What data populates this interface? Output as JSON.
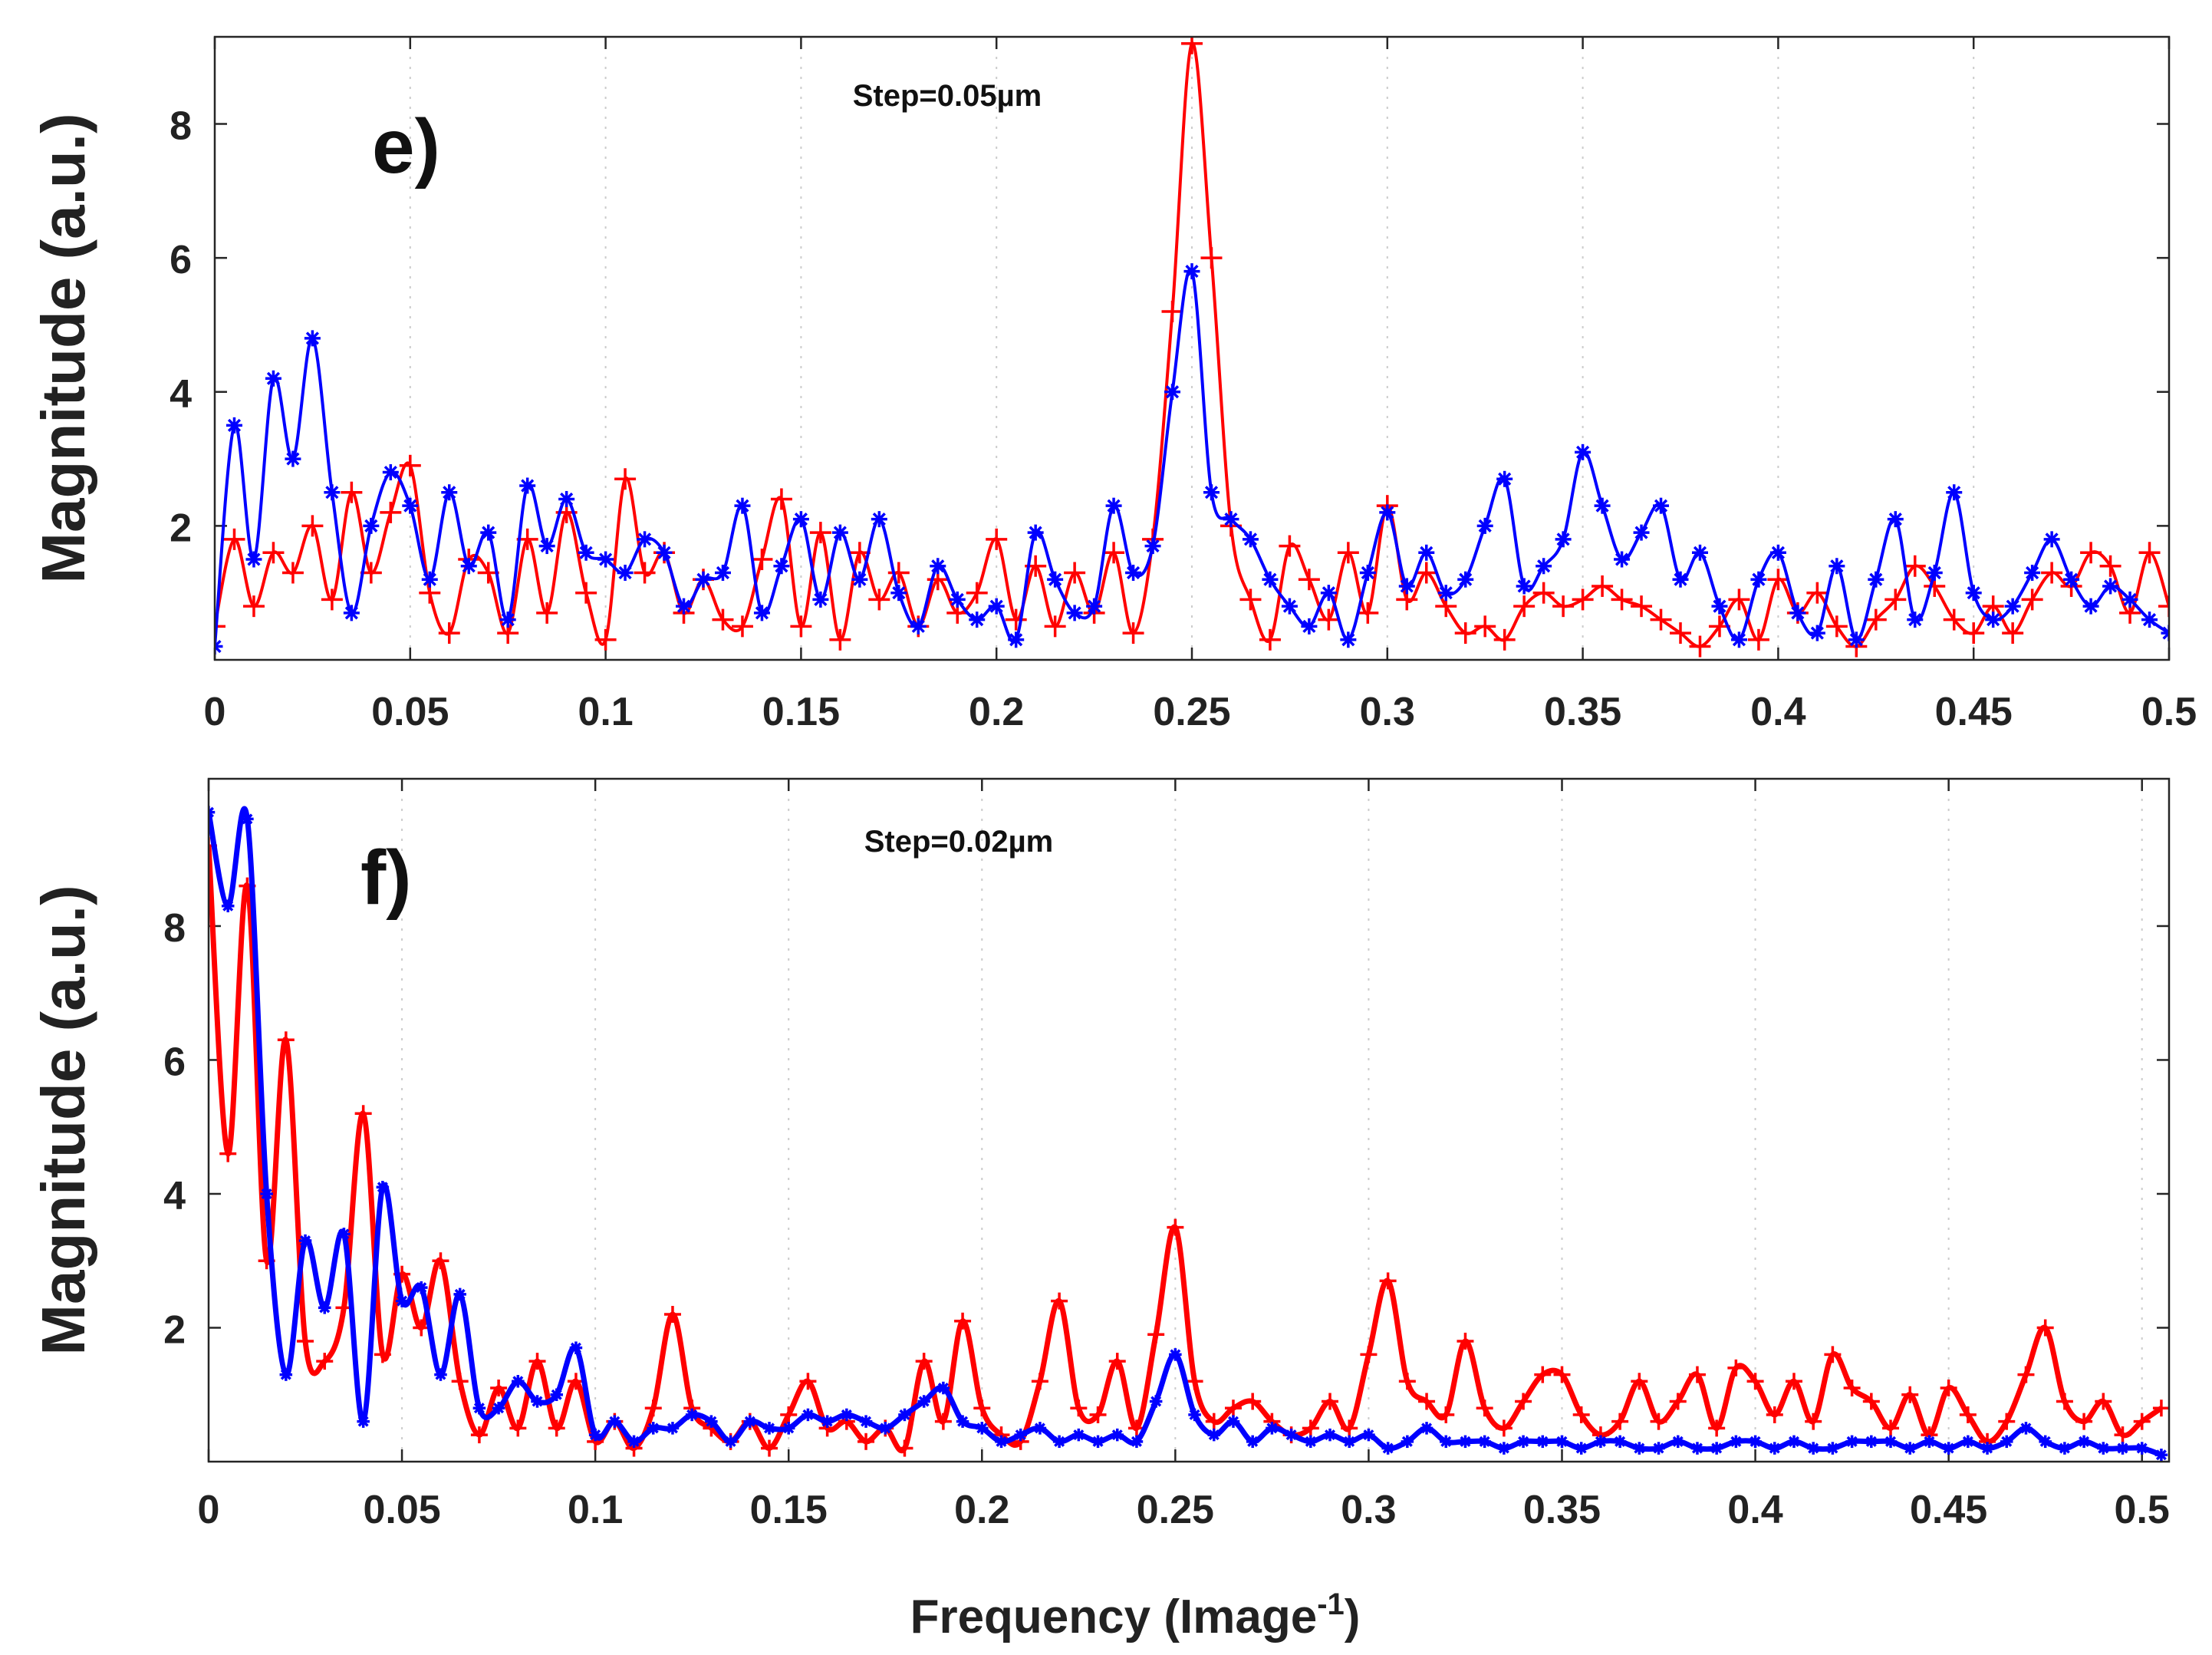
{
  "figure": {
    "x_axis_title": "Frequency (Image",
    "x_axis_title_sup": "-1",
    "x_axis_title_end": ")",
    "colors": {
      "red_series": "#ff0000",
      "blue_series": "#0000ff",
      "axis": "#262626"
    }
  },
  "chart_data": [
    {
      "type": "line",
      "panel": "e)",
      "annotation": "Step=0.05µm",
      "xlabel": "",
      "ylabel": "Magnitude (a.u.)",
      "xlim": [
        0,
        0.5
      ],
      "ylim": [
        0,
        9.3
      ],
      "xticks": [
        0,
        0.05,
        0.1,
        0.15,
        0.2,
        0.25,
        0.3,
        0.35,
        0.4,
        0.45,
        0.5
      ],
      "xtick_labels": [
        "0",
        "0.05",
        "0.1",
        "0.15",
        "0.2",
        "0.25",
        "0.3",
        "0.35",
        "0.4",
        "0.45",
        "0.5"
      ],
      "yticks": [
        2,
        4,
        6,
        8
      ],
      "ytick_labels": [
        "2",
        "4",
        "6",
        "8"
      ],
      "grid": "vertical-dotted",
      "series": [
        {
          "name": "red",
          "color": "#ff0000",
          "marker": "plus",
          "x": [
            0,
            0.005,
            0.01,
            0.015,
            0.02,
            0.025,
            0.03,
            0.035,
            0.04,
            0.045,
            0.05,
            0.055,
            0.06,
            0.065,
            0.07,
            0.075,
            0.08,
            0.085,
            0.09,
            0.095,
            0.1,
            0.105,
            0.11,
            0.115,
            0.12,
            0.125,
            0.13,
            0.135,
            0.14,
            0.145,
            0.15,
            0.155,
            0.16,
            0.165,
            0.17,
            0.175,
            0.18,
            0.185,
            0.19,
            0.195,
            0.2,
            0.205,
            0.21,
            0.215,
            0.22,
            0.225,
            0.23,
            0.235,
            0.24,
            0.245,
            0.25,
            0.255,
            0.26,
            0.265,
            0.27,
            0.275,
            0.28,
            0.285,
            0.29,
            0.295,
            0.3,
            0.305,
            0.31,
            0.315,
            0.32,
            0.325,
            0.33,
            0.335,
            0.34,
            0.345,
            0.35,
            0.355,
            0.36,
            0.365,
            0.37,
            0.375,
            0.38,
            0.385,
            0.39,
            0.395,
            0.4,
            0.405,
            0.41,
            0.415,
            0.42,
            0.425,
            0.43,
            0.435,
            0.44,
            0.445,
            0.45,
            0.455,
            0.46,
            0.465,
            0.47,
            0.475,
            0.48,
            0.485,
            0.49,
            0.495,
            0.5
          ],
          "y": [
            0.5,
            1.8,
            0.8,
            1.6,
            1.3,
            2.0,
            0.9,
            2.5,
            1.3,
            2.2,
            2.9,
            1.0,
            0.4,
            1.5,
            1.3,
            0.4,
            1.8,
            0.7,
            2.2,
            1.0,
            0.3,
            2.7,
            1.3,
            1.6,
            0.7,
            1.2,
            0.6,
            0.5,
            1.5,
            2.4,
            0.5,
            1.9,
            0.3,
            1.6,
            0.9,
            1.3,
            0.5,
            1.2,
            0.7,
            1.0,
            1.8,
            0.6,
            1.4,
            0.5,
            1.3,
            0.7,
            1.6,
            0.4,
            1.8,
            5.2,
            9.2,
            6.0,
            2.0,
            0.9,
            0.3,
            1.7,
            1.2,
            0.6,
            1.6,
            0.7,
            2.3,
            0.9,
            1.3,
            0.8,
            0.4,
            0.5,
            0.3,
            0.8,
            1.0,
            0.8,
            0.9,
            1.1,
            0.9,
            0.8,
            0.6,
            0.4,
            0.2,
            0.5,
            0.9,
            0.3,
            1.2,
            0.7,
            1.0,
            0.5,
            0.2,
            0.6,
            0.9,
            1.4,
            1.1,
            0.6,
            0.4,
            0.8,
            0.4,
            0.9,
            1.3,
            1.1,
            1.6,
            1.4,
            0.7,
            1.6,
            0.8
          ]
        },
        {
          "name": "blue",
          "color": "#0000ff",
          "marker": "star",
          "x": [
            0,
            0.005,
            0.01,
            0.015,
            0.02,
            0.025,
            0.03,
            0.035,
            0.04,
            0.045,
            0.05,
            0.055,
            0.06,
            0.065,
            0.07,
            0.075,
            0.08,
            0.085,
            0.09,
            0.095,
            0.1,
            0.105,
            0.11,
            0.115,
            0.12,
            0.125,
            0.13,
            0.135,
            0.14,
            0.145,
            0.15,
            0.155,
            0.16,
            0.165,
            0.17,
            0.175,
            0.18,
            0.185,
            0.19,
            0.195,
            0.2,
            0.205,
            0.21,
            0.215,
            0.22,
            0.225,
            0.23,
            0.235,
            0.24,
            0.245,
            0.25,
            0.255,
            0.26,
            0.265,
            0.27,
            0.275,
            0.28,
            0.285,
            0.29,
            0.295,
            0.3,
            0.305,
            0.31,
            0.315,
            0.32,
            0.325,
            0.33,
            0.335,
            0.34,
            0.345,
            0.35,
            0.355,
            0.36,
            0.365,
            0.37,
            0.375,
            0.38,
            0.385,
            0.39,
            0.395,
            0.4,
            0.405,
            0.41,
            0.415,
            0.42,
            0.425,
            0.43,
            0.435,
            0.44,
            0.445,
            0.45,
            0.455,
            0.46,
            0.465,
            0.47,
            0.475,
            0.48,
            0.485,
            0.49,
            0.495,
            0.5
          ],
          "y": [
            0.2,
            3.5,
            1.5,
            4.2,
            3.0,
            4.8,
            2.5,
            0.7,
            2.0,
            2.8,
            2.3,
            1.2,
            2.5,
            1.4,
            1.9,
            0.6,
            2.6,
            1.7,
            2.4,
            1.6,
            1.5,
            1.3,
            1.8,
            1.6,
            0.8,
            1.2,
            1.3,
            2.3,
            0.7,
            1.4,
            2.1,
            0.9,
            1.9,
            1.2,
            2.1,
            1.0,
            0.5,
            1.4,
            0.9,
            0.6,
            0.8,
            0.3,
            1.9,
            1.2,
            0.7,
            0.8,
            2.3,
            1.3,
            1.7,
            4.0,
            5.8,
            2.5,
            2.1,
            1.8,
            1.2,
            0.8,
            0.5,
            1.0,
            0.3,
            1.3,
            2.2,
            1.1,
            1.6,
            1.0,
            1.2,
            2.0,
            2.7,
            1.1,
            1.4,
            1.8,
            3.1,
            2.3,
            1.5,
            1.9,
            2.3,
            1.2,
            1.6,
            0.8,
            0.3,
            1.2,
            1.6,
            0.7,
            0.4,
            1.4,
            0.3,
            1.2,
            2.1,
            0.6,
            1.3,
            2.5,
            1.0,
            0.6,
            0.8,
            1.3,
            1.8,
            1.2,
            0.8,
            1.1,
            0.9,
            0.6,
            0.4
          ]
        }
      ]
    },
    {
      "type": "line",
      "panel": "f)",
      "annotation": "Step=0.02µm",
      "xlabel": "Frequency (Image^-1)",
      "ylabel": "Magnitude (a.u.)",
      "xlim": [
        0,
        0.507
      ],
      "ylim": [
        0,
        10.2
      ],
      "xticks": [
        0,
        0.05,
        0.1,
        0.15,
        0.2,
        0.25,
        0.3,
        0.35,
        0.4,
        0.45,
        0.5
      ],
      "xtick_labels": [
        "0",
        "0.05",
        "0.1",
        "0.15",
        "0.2",
        "0.25",
        "0.3",
        "0.35",
        "0.4",
        "0.45",
        "0.5"
      ],
      "yticks": [
        2,
        4,
        6,
        8
      ],
      "ytick_labels": [
        "2",
        "4",
        "6",
        "8"
      ],
      "grid": "vertical-dotted",
      "series": [
        {
          "name": "red",
          "color": "#ff0000",
          "marker": "plus",
          "x": [
            0,
            0.005,
            0.01,
            0.015,
            0.02,
            0.025,
            0.03,
            0.035,
            0.04,
            0.045,
            0.05,
            0.055,
            0.06,
            0.065,
            0.07,
            0.075,
            0.08,
            0.085,
            0.09,
            0.095,
            0.1,
            0.105,
            0.11,
            0.115,
            0.12,
            0.125,
            0.13,
            0.135,
            0.14,
            0.145,
            0.15,
            0.155,
            0.16,
            0.165,
            0.17,
            0.175,
            0.18,
            0.185,
            0.19,
            0.195,
            0.2,
            0.205,
            0.21,
            0.215,
            0.22,
            0.225,
            0.23,
            0.235,
            0.24,
            0.245,
            0.25,
            0.255,
            0.26,
            0.265,
            0.27,
            0.275,
            0.28,
            0.285,
            0.29,
            0.295,
            0.3,
            0.305,
            0.31,
            0.315,
            0.32,
            0.325,
            0.33,
            0.335,
            0.34,
            0.345,
            0.35,
            0.355,
            0.36,
            0.365,
            0.37,
            0.375,
            0.38,
            0.385,
            0.39,
            0.395,
            0.4,
            0.405,
            0.41,
            0.415,
            0.42,
            0.425,
            0.43,
            0.435,
            0.44,
            0.445,
            0.45,
            0.455,
            0.46,
            0.465,
            0.47,
            0.475,
            0.48,
            0.485,
            0.49,
            0.495,
            0.5,
            0.505
          ],
          "y": [
            9.2,
            4.6,
            8.6,
            3.0,
            6.3,
            1.8,
            1.5,
            2.3,
            5.2,
            1.6,
            2.8,
            2.0,
            3.0,
            1.2,
            0.4,
            1.1,
            0.5,
            1.5,
            0.5,
            1.2,
            0.3,
            0.6,
            0.2,
            0.8,
            2.2,
            0.8,
            0.5,
            0.3,
            0.6,
            0.2,
            0.7,
            1.2,
            0.5,
            0.6,
            0.3,
            0.5,
            0.2,
            1.5,
            0.6,
            2.1,
            0.8,
            0.4,
            0.3,
            1.2,
            2.4,
            0.8,
            0.7,
            1.5,
            0.5,
            1.9,
            3.5,
            1.2,
            0.6,
            0.8,
            0.9,
            0.6,
            0.4,
            0.5,
            0.9,
            0.5,
            1.6,
            2.7,
            1.2,
            0.9,
            0.7,
            1.8,
            0.8,
            0.5,
            0.9,
            1.3,
            1.3,
            0.7,
            0.4,
            0.6,
            1.2,
            0.6,
            0.9,
            1.3,
            0.5,
            1.4,
            1.2,
            0.7,
            1.2,
            0.6,
            1.6,
            1.1,
            0.9,
            0.5,
            1.0,
            0.4,
            1.1,
            0.7,
            0.3,
            0.6,
            1.3,
            2.0,
            0.9,
            0.6,
            0.9,
            0.4,
            0.6,
            0.8
          ]
        },
        {
          "name": "blue",
          "color": "#0000ff",
          "marker": "star",
          "x": [
            0,
            0.005,
            0.01,
            0.015,
            0.02,
            0.025,
            0.03,
            0.035,
            0.04,
            0.045,
            0.05,
            0.055,
            0.06,
            0.065,
            0.07,
            0.075,
            0.08,
            0.085,
            0.09,
            0.095,
            0.1,
            0.105,
            0.11,
            0.115,
            0.12,
            0.125,
            0.13,
            0.135,
            0.14,
            0.145,
            0.15,
            0.155,
            0.16,
            0.165,
            0.17,
            0.175,
            0.18,
            0.185,
            0.19,
            0.195,
            0.2,
            0.205,
            0.21,
            0.215,
            0.22,
            0.225,
            0.23,
            0.235,
            0.24,
            0.245,
            0.25,
            0.255,
            0.26,
            0.265,
            0.27,
            0.275,
            0.28,
            0.285,
            0.29,
            0.295,
            0.3,
            0.305,
            0.31,
            0.315,
            0.32,
            0.325,
            0.33,
            0.335,
            0.34,
            0.345,
            0.35,
            0.355,
            0.36,
            0.365,
            0.37,
            0.375,
            0.38,
            0.385,
            0.39,
            0.395,
            0.4,
            0.405,
            0.41,
            0.415,
            0.42,
            0.425,
            0.43,
            0.435,
            0.44,
            0.445,
            0.45,
            0.455,
            0.46,
            0.465,
            0.47,
            0.475,
            0.48,
            0.485,
            0.49,
            0.495,
            0.5,
            0.505
          ],
          "y": [
            9.7,
            8.3,
            9.6,
            4.0,
            1.3,
            3.3,
            2.3,
            3.4,
            0.6,
            4.1,
            2.4,
            2.6,
            1.3,
            2.5,
            0.8,
            0.8,
            1.2,
            0.9,
            1.0,
            1.7,
            0.4,
            0.6,
            0.3,
            0.5,
            0.5,
            0.7,
            0.6,
            0.3,
            0.6,
            0.5,
            0.5,
            0.7,
            0.6,
            0.7,
            0.6,
            0.5,
            0.7,
            0.9,
            1.1,
            0.6,
            0.5,
            0.3,
            0.4,
            0.5,
            0.3,
            0.4,
            0.3,
            0.4,
            0.3,
            0.9,
            1.6,
            0.7,
            0.4,
            0.6,
            0.3,
            0.5,
            0.4,
            0.3,
            0.4,
            0.3,
            0.4,
            0.2,
            0.3,
            0.5,
            0.3,
            0.3,
            0.3,
            0.2,
            0.3,
            0.3,
            0.3,
            0.2,
            0.3,
            0.3,
            0.2,
            0.2,
            0.3,
            0.2,
            0.2,
            0.3,
            0.3,
            0.2,
            0.3,
            0.2,
            0.2,
            0.3,
            0.3,
            0.3,
            0.2,
            0.3,
            0.2,
            0.3,
            0.2,
            0.3,
            0.5,
            0.3,
            0.2,
            0.3,
            0.2,
            0.2,
            0.2,
            0.1
          ]
        }
      ]
    }
  ]
}
